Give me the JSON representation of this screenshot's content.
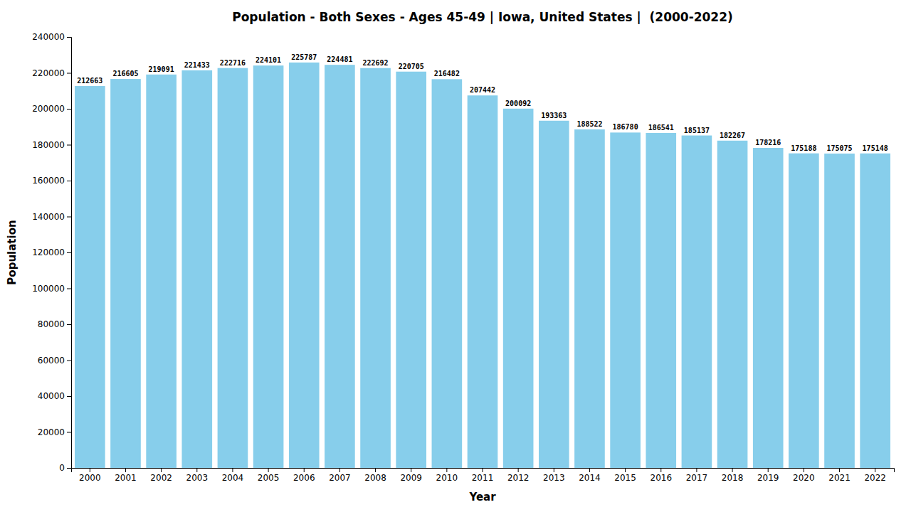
{
  "chart_data": {
    "type": "bar",
    "title": "Population - Both Sexes - Ages 45-49 | Iowa, United States |  (2000-2022)",
    "categories": [
      "2000",
      "2001",
      "2002",
      "2003",
      "2004",
      "2005",
      "2006",
      "2007",
      "2008",
      "2009",
      "2010",
      "2011",
      "2012",
      "2013",
      "2014",
      "2015",
      "2016",
      "2017",
      "2018",
      "2019",
      "2020",
      "2021",
      "2022"
    ],
    "values": [
      212663,
      216605,
      219091,
      221433,
      222716,
      224101,
      225787,
      224481,
      222692,
      220705,
      216482,
      207442,
      200092,
      193363,
      188522,
      186780,
      186541,
      185137,
      182267,
      178216,
      175188,
      175075,
      175148
    ],
    "color": "#87CEEB",
    "xlabel": "Year",
    "ylabel": "Population",
    "ylim": [
      0,
      240000
    ],
    "yticks": [
      0,
      20000,
      40000,
      60000,
      80000,
      100000,
      120000,
      140000,
      160000,
      180000,
      200000,
      220000,
      240000
    ],
    "grid": false,
    "data_labels": true
  }
}
